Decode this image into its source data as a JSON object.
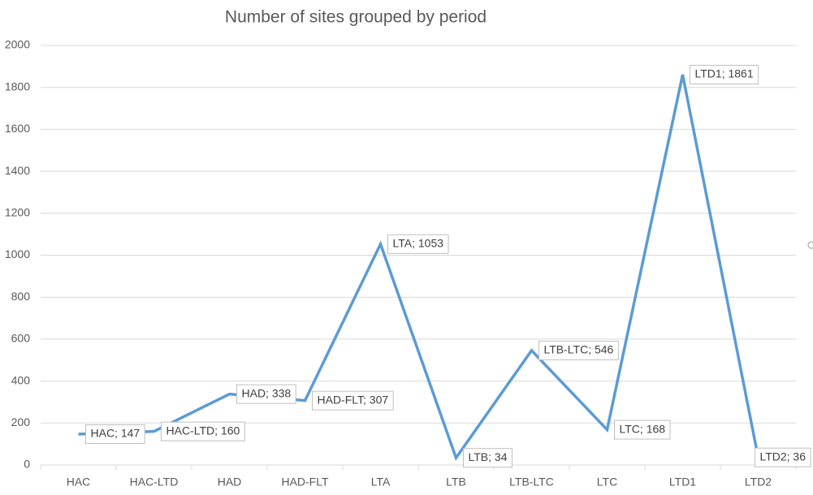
{
  "chart_data": {
    "type": "line",
    "title": "Number of sites grouped by period",
    "categories": [
      "HAC",
      "HAC-LTD",
      "HAD",
      "HAD-FLT",
      "LTA",
      "LTB",
      "LTB-LTC",
      "LTC",
      "LTD1",
      "LTD2"
    ],
    "values": [
      147,
      160,
      338,
      307,
      1053,
      34,
      546,
      168,
      1861,
      36
    ],
    "value_labels": [
      "HAC; 147",
      "HAC-LTD; 160",
      "HAD; 338",
      "HAD-FLT; 307",
      "LTA; 1053",
      "LTB; 34",
      "LTB-LTC; 546",
      "LTC; 168",
      "LTD1; 1861",
      "LTD2; 36"
    ],
    "color": "#5b9bd5",
    "ylim": [
      0,
      2000
    ],
    "yticks": [
      0,
      200,
      400,
      600,
      800,
      1000,
      1200,
      1400,
      1600,
      1800,
      2000
    ],
    "grid": true
  }
}
